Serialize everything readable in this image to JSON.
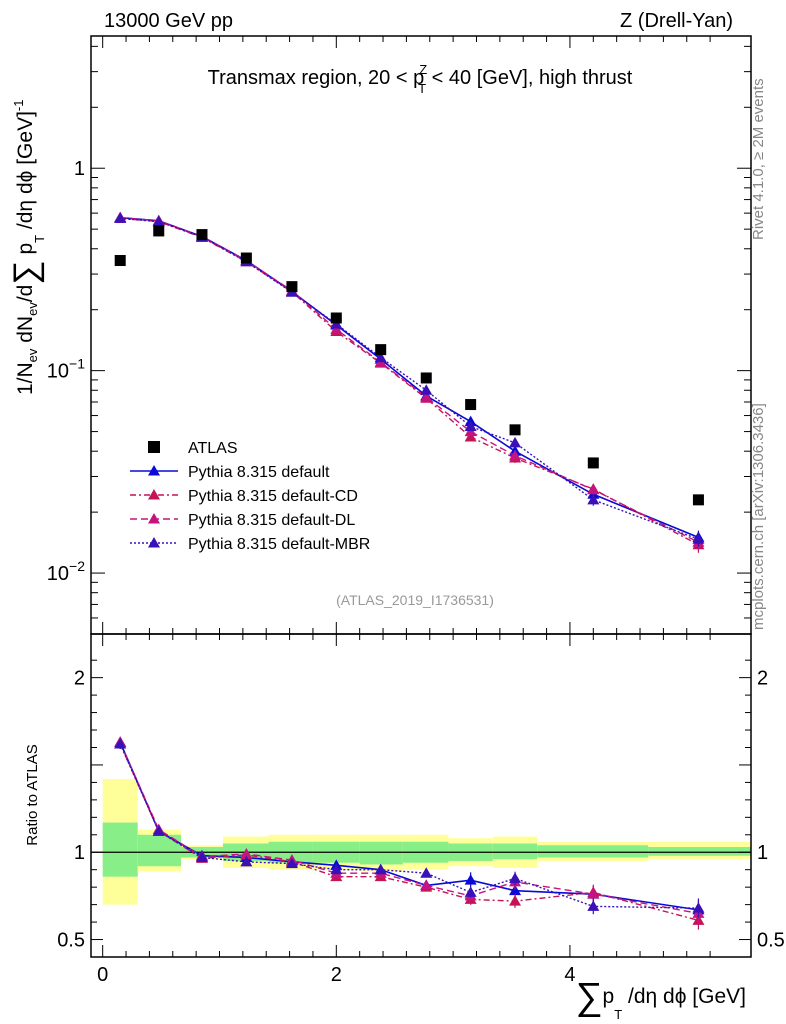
{
  "header": {
    "left": "13000 GeV pp",
    "right": "Z (Drell-Yan)"
  },
  "side": {
    "rivet": "Rivet 4.1.0, ≥ 2M events",
    "mcplots": "mcplots.cern.ch [arXiv:1306.3436]"
  },
  "chart_data": {
    "type": "line",
    "title": "Transmax region, 20 < pT^Z < 40 [GeV], high thrust",
    "title_parts": {
      "pre": "Transmax region, 20 < p",
      "sup": "Z",
      "sub": "T",
      "post": " < 40 [GeV], high thrust"
    },
    "analysis_tag": "(ATLAS_2019_I1736531)",
    "xlabel": "∑ pT /dη dϕ [GeV]",
    "xlabel_parts": {
      "sigma": "∑",
      "p": "p",
      "sub": "T",
      "rest": " /dη dϕ [GeV]"
    },
    "ylabel": "1/Nev dNev/d∑ pT /dη dϕ [GeV]^-1",
    "ylabel_parts": {
      "a": "1/N",
      "a_sub": "ev",
      "b": " dN",
      "b_sub": "ev",
      "c": "/d",
      "sigma": "∑",
      "d": " p",
      "d_sub": "T",
      "e": " /dη dϕ  [GeV]",
      "e_sup": "-1"
    },
    "ratio_ylabel": "Ratio to ATLAS",
    "xlim": [
      -0.1,
      5.55
    ],
    "ylim": [
      0.005,
      4.5
    ],
    "yscale": "log",
    "ratio_ylim": [
      0.4,
      2.25
    ],
    "x_ticks": [
      0,
      2,
      4
    ],
    "y_ticks_main": [
      {
        "value": 1,
        "base": "1",
        "exp": ""
      },
      {
        "value": 0.1,
        "base": "10",
        "exp": "−1"
      },
      {
        "value": 0.01,
        "base": "10",
        "exp": "−2"
      }
    ],
    "y_ticks_ratio": [
      {
        "value": 0.5,
        "label": "0.5"
      },
      {
        "value": 1,
        "label": "1"
      },
      {
        "value": 2,
        "label": "2"
      }
    ],
    "x": [
      0.15,
      0.48,
      0.85,
      1.23,
      1.62,
      2.0,
      2.38,
      2.77,
      3.15,
      3.53,
      4.2,
      5.1
    ],
    "band_edges": [
      0,
      0.3,
      0.67,
      1.03,
      1.42,
      1.8,
      2.2,
      2.57,
      2.96,
      3.34,
      3.72,
      4.67,
      5.55
    ],
    "band_inner": [
      [
        0.86,
        1.17
      ],
      [
        0.92,
        1.1
      ],
      [
        0.97,
        1.03
      ],
      [
        0.95,
        1.05
      ],
      [
        0.94,
        1.06
      ],
      [
        0.94,
        1.06
      ],
      [
        0.93,
        1.06
      ],
      [
        0.94,
        1.06
      ],
      [
        0.95,
        1.05
      ],
      [
        0.96,
        1.05
      ],
      [
        0.97,
        1.04
      ],
      [
        0.98,
        1.03
      ]
    ],
    "band_outer": [
      [
        0.7,
        1.42
      ],
      [
        0.89,
        1.13
      ],
      [
        0.96,
        1.04
      ],
      [
        0.91,
        1.09
      ],
      [
        0.9,
        1.1
      ],
      [
        0.9,
        1.1
      ],
      [
        0.89,
        1.1
      ],
      [
        0.9,
        1.1
      ],
      [
        0.92,
        1.08
      ],
      [
        0.91,
        1.09
      ],
      [
        0.95,
        1.06
      ],
      [
        0.96,
        1.06
      ]
    ],
    "data_series": {
      "name": "ATLAS",
      "color": "#000000",
      "values": [
        0.35,
        0.49,
        0.47,
        0.36,
        0.26,
        0.182,
        0.127,
        0.092,
        0.068,
        0.051,
        0.035,
        0.023
      ]
    },
    "series": [
      {
        "name": "Pythia 8.315 default",
        "color": "#0a0ad8",
        "dash": "",
        "values": [
          0.57,
          0.55,
          0.46,
          0.35,
          0.246,
          0.168,
          0.114,
          0.075,
          0.056,
          0.04,
          0.0245,
          0.015
        ],
        "errors": [
          0.01,
          0.01,
          0.005,
          0.004,
          0.003,
          0.002,
          0.002,
          0.002,
          0.003,
          0.002,
          0.0015,
          0.0012
        ],
        "ratio": [
          1.63,
          1.12,
          0.98,
          0.97,
          0.945,
          0.925,
          0.9,
          0.81,
          0.84,
          0.78,
          0.76,
          0.67
        ]
      },
      {
        "name": "Pythia 8.315 default-CD",
        "color": "#c41458",
        "dash": "6,3,2,3",
        "values": [
          0.565,
          0.545,
          0.455,
          0.345,
          0.245,
          0.156,
          0.109,
          0.073,
          0.047,
          0.037,
          0.026,
          0.0138
        ],
        "errors": [
          0.01,
          0.01,
          0.005,
          0.004,
          0.003,
          0.002,
          0.002,
          0.002,
          0.002,
          0.002,
          0.0015,
          0.0012
        ],
        "ratio": [
          1.62,
          1.12,
          0.965,
          0.985,
          0.945,
          0.86,
          0.86,
          0.8,
          0.73,
          0.72,
          0.77,
          0.61
        ]
      },
      {
        "name": "Pythia 8.315 default-DL",
        "color": "#c41480",
        "dash": "7,4",
        "values": [
          0.57,
          0.55,
          0.46,
          0.35,
          0.248,
          0.16,
          0.11,
          0.074,
          0.05,
          0.038,
          0.0258,
          0.0142
        ],
        "errors": [
          0.01,
          0.01,
          0.005,
          0.004,
          0.003,
          0.002,
          0.002,
          0.002,
          0.002,
          0.002,
          0.0015,
          0.0012
        ],
        "ratio": [
          1.63,
          1.13,
          0.975,
          0.99,
          0.955,
          0.88,
          0.88,
          0.81,
          0.75,
          0.83,
          0.76,
          0.65
        ]
      },
      {
        "name": "Pythia 8.315 default-MBR",
        "color": "#3a10b8",
        "dash": "2,2",
        "values": [
          0.565,
          0.545,
          0.458,
          0.345,
          0.244,
          0.17,
          0.116,
          0.08,
          0.053,
          0.044,
          0.023,
          0.0147
        ],
        "errors": [
          0.01,
          0.01,
          0.005,
          0.004,
          0.003,
          0.002,
          0.002,
          0.002,
          0.002,
          0.002,
          0.0015,
          0.0012
        ],
        "ratio": [
          1.62,
          1.12,
          0.97,
          0.945,
          0.935,
          0.9,
          0.9,
          0.88,
          0.77,
          0.85,
          0.69,
          0.68
        ]
      }
    ]
  }
}
